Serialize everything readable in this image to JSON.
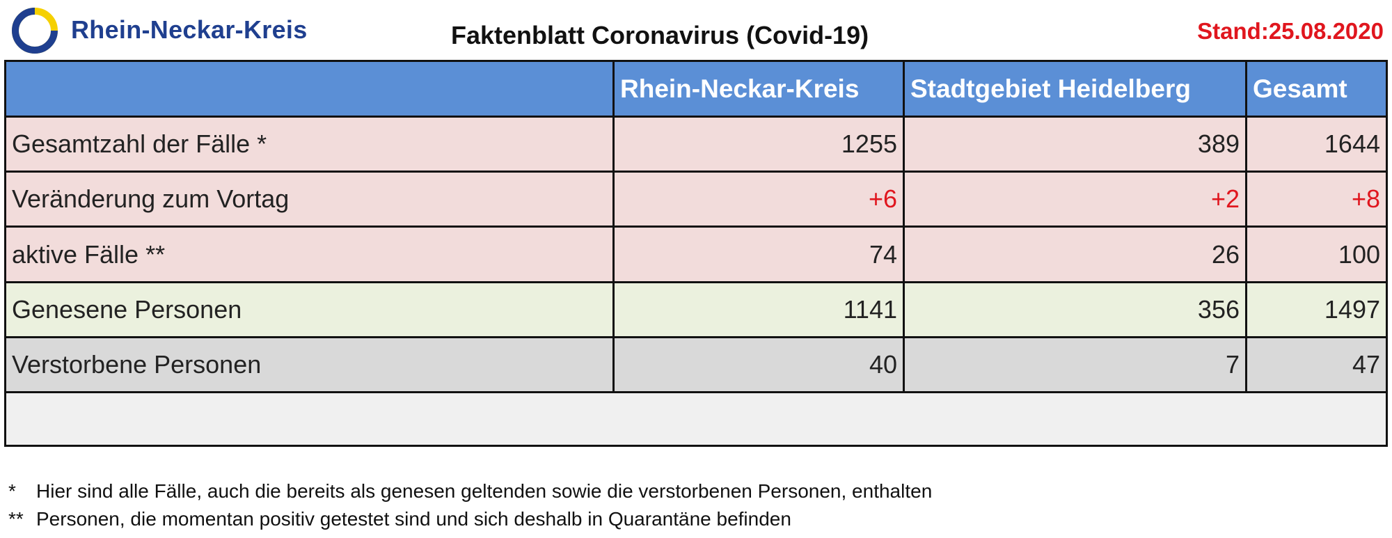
{
  "header": {
    "logo_text": "Rhein-Neckar-Kreis",
    "title": "Faktenblatt Coronavirus (Covid-19)",
    "stand": "Stand:25.08.2020"
  },
  "table": {
    "columns": [
      "",
      "Rhein-Neckar-Kreis",
      "Stadtgebiet Heidelberg",
      "Gesamt"
    ],
    "rows": [
      {
        "label": "Gesamtzahl der Fälle *",
        "values": [
          "1255",
          "389",
          "1644"
        ],
        "style": "pink",
        "red": false
      },
      {
        "label": "Veränderung zum Vortag",
        "values": [
          "+6",
          "+2",
          "+8"
        ],
        "style": "pink",
        "red": true
      },
      {
        "label": "aktive Fälle **",
        "values": [
          "74",
          "26",
          "100"
        ],
        "style": "pink",
        "red": false
      },
      {
        "label": "Genesene Personen",
        "values": [
          "1141",
          "356",
          "1497"
        ],
        "style": "green",
        "red": false
      },
      {
        "label": "Verstorbene Personen",
        "values": [
          "40",
          "7",
          "47"
        ],
        "style": "gray",
        "red": false
      }
    ]
  },
  "footnotes": [
    {
      "mark": "*",
      "text": "Hier sind alle Fälle, auch die bereits als genesen geltenden sowie die verstorbenen Personen, enthalten"
    },
    {
      "mark": "**",
      "text": "Personen, die momentan positiv getestet sind und sich deshalb in Quarantäne befinden"
    }
  ],
  "colors": {
    "header_blue": "#5b8fd6",
    "row_pink": "#f2dcdb",
    "row_green": "#ebf1de",
    "row_gray": "#d9d9d9",
    "accent_red": "#e0161e",
    "logo_blue": "#1f3f8f",
    "logo_yellow": "#f5d000"
  },
  "icons": {
    "logo": "rhein-neckar-kreis-logo-icon"
  }
}
